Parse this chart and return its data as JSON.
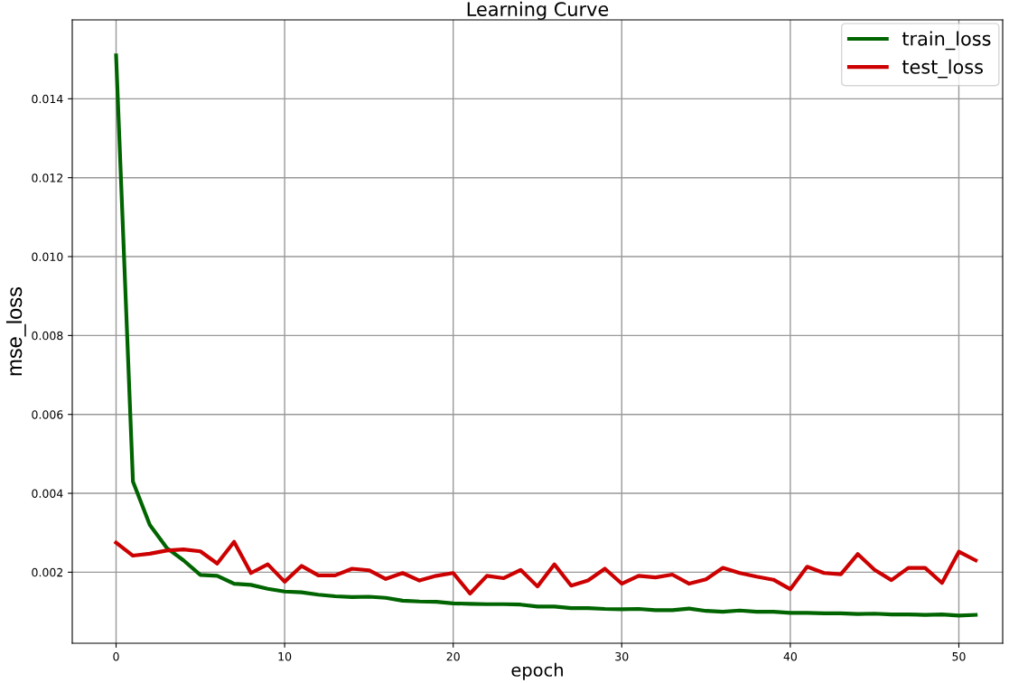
{
  "chart_data": {
    "type": "line",
    "title": "Learning Curve",
    "xlabel": "epoch",
    "ylabel": "mse_loss",
    "x": [
      0,
      1,
      2,
      3,
      4,
      5,
      6,
      7,
      8,
      9,
      10,
      11,
      12,
      13,
      14,
      15,
      16,
      17,
      18,
      19,
      20,
      21,
      22,
      23,
      24,
      25,
      26,
      27,
      28,
      29,
      30,
      31,
      32,
      33,
      34,
      35,
      36,
      37,
      38,
      39,
      40,
      41,
      42,
      43,
      44,
      45,
      46,
      47,
      48,
      49,
      50,
      51
    ],
    "series": [
      {
        "name": "train_loss",
        "color": "#006400",
        "values": [
          0.0151,
          0.0043,
          0.0032,
          0.00262,
          0.0023,
          0.00193,
          0.00191,
          0.00171,
          0.00168,
          0.00158,
          0.00151,
          0.00149,
          0.00143,
          0.00139,
          0.00137,
          0.00138,
          0.00135,
          0.00128,
          0.00126,
          0.00125,
          0.00121,
          0.0012,
          0.00119,
          0.00119,
          0.00118,
          0.00113,
          0.00113,
          0.00109,
          0.00109,
          0.00107,
          0.00106,
          0.00107,
          0.00104,
          0.00104,
          0.00108,
          0.00102,
          0.001,
          0.00103,
          0.001,
          0.001,
          0.00097,
          0.00097,
          0.00096,
          0.00096,
          0.00094,
          0.00095,
          0.00093,
          0.00093,
          0.00092,
          0.00093,
          0.0009,
          0.00092
        ]
      },
      {
        "name": "test_loss",
        "color": "#cc0000",
        "values": [
          0.00275,
          0.00242,
          0.00247,
          0.00255,
          0.00258,
          0.00253,
          0.00222,
          0.00277,
          0.00198,
          0.0022,
          0.00176,
          0.00216,
          0.00192,
          0.00192,
          0.00209,
          0.00205,
          0.00183,
          0.00198,
          0.00179,
          0.00191,
          0.00198,
          0.00146,
          0.00191,
          0.00185,
          0.00206,
          0.00164,
          0.0022,
          0.00166,
          0.00179,
          0.00209,
          0.00171,
          0.00191,
          0.00187,
          0.00194,
          0.00171,
          0.00182,
          0.00211,
          0.00198,
          0.00189,
          0.00181,
          0.00157,
          0.00214,
          0.00198,
          0.00195,
          0.00246,
          0.00206,
          0.0018,
          0.00211,
          0.00211,
          0.00173,
          0.00252,
          0.0023
        ]
      }
    ],
    "xlim": [
      -2.6,
      52.6
    ],
    "ylim": [
      0.0002,
      0.016
    ],
    "xticks": [
      0,
      10,
      20,
      30,
      40,
      50
    ],
    "yticks": [
      {
        "value": 0.002,
        "label": "0.002"
      },
      {
        "value": 0.004,
        "label": "0.004"
      },
      {
        "value": 0.006,
        "label": "0.006"
      },
      {
        "value": 0.008,
        "label": "0.008"
      },
      {
        "value": 0.01,
        "label": "0.010"
      },
      {
        "value": 0.012,
        "label": "0.012"
      },
      {
        "value": 0.014,
        "label": "0.014"
      }
    ],
    "grid": true,
    "legend": "upper right",
    "marker": "none",
    "line_style": "solid"
  }
}
